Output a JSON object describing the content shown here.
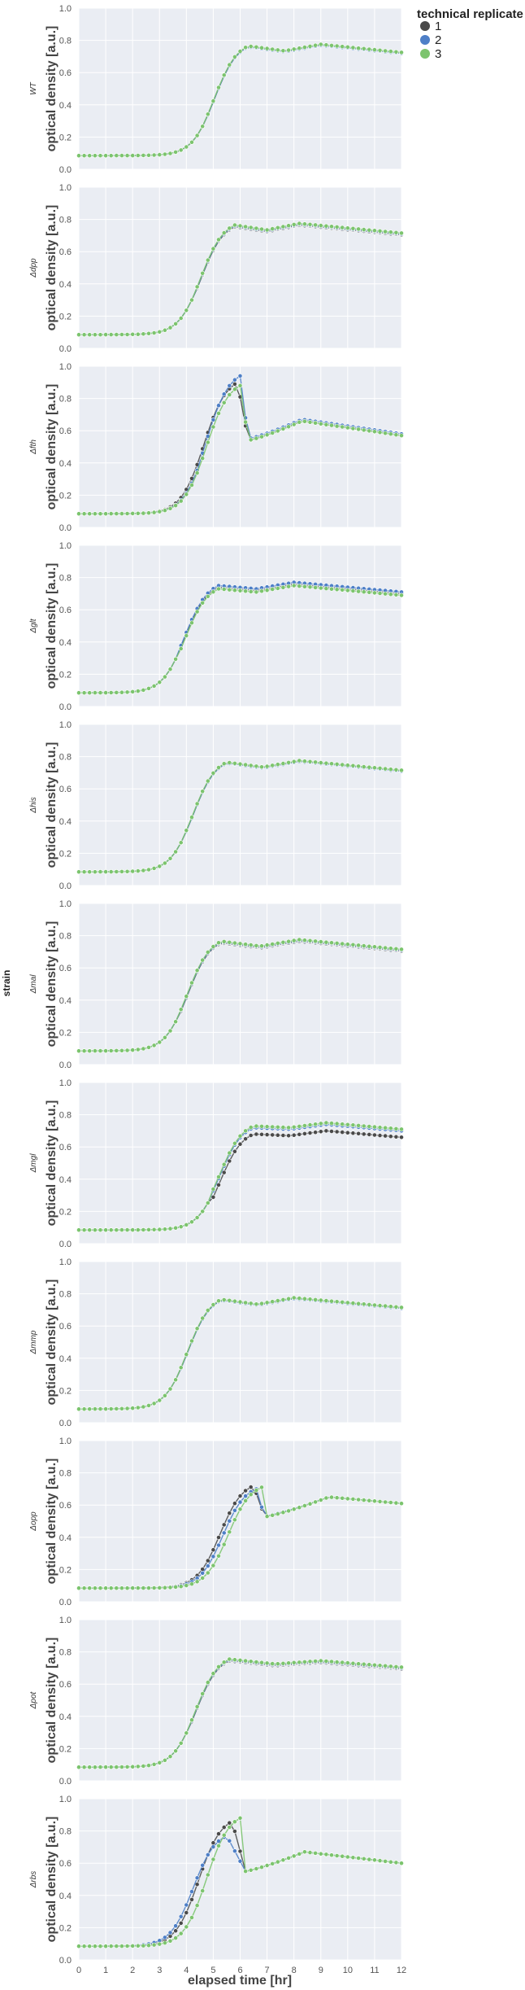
{
  "chart_data": {
    "type": "scatter",
    "x_label": "elapsed time [hr]",
    "y_label": "optical density [a.u.]",
    "facet_title": "strain",
    "xlim": [
      0,
      12
    ],
    "ylim": [
      0,
      1.0
    ],
    "x_ticks": [
      0,
      1,
      2,
      3,
      4,
      5,
      6,
      7,
      8,
      9,
      10,
      11,
      12
    ],
    "y_ticks": [
      0.0,
      0.2,
      0.4,
      0.6,
      0.8,
      1.0
    ],
    "y_tick_labels": [
      "0.0",
      "0.2",
      "0.4",
      "0.6",
      "0.8",
      "1.0"
    ],
    "grid": true,
    "legend": {
      "title": "technical replicate",
      "placement": "top-right outside",
      "entries": [
        {
          "label": "1",
          "color": "#4a4a4a"
        },
        {
          "label": "2",
          "color": "#4e7fc7"
        },
        {
          "label": "3",
          "color": "#7cc46e"
        }
      ]
    },
    "colors": {
      "panel_background": "#eaedf3",
      "grid": "#ffffff",
      "replicate_1": "#4a4a4a",
      "replicate_2": "#4e7fc7",
      "replicate_3": "#7cc46e"
    },
    "panels": [
      {
        "strain": "WT",
        "kind": "standard",
        "plateau_time": 6.3,
        "peak": 0.76,
        "dip": 0.73,
        "second_peak_time": 9.0,
        "second_peak": 0.77,
        "end": 0.72,
        "offsets": [
          0.0,
          0.0,
          0.005
        ]
      },
      {
        "strain": "Δdpp",
        "kind": "standard",
        "plateau_time": 5.8,
        "peak": 0.76,
        "dip": 0.73,
        "second_peak_time": 8.2,
        "second_peak": 0.77,
        "end": 0.71,
        "offsets": [
          -0.005,
          0.0,
          0.005
        ]
      },
      {
        "strain": "Δfth",
        "kind": "crash",
        "peak_times": [
          5.9,
          6.0,
          6.0
        ],
        "peaks": [
          0.9,
          0.93,
          0.88
        ],
        "crash_time": 6.3,
        "crash_level": 0.54,
        "second_peak_time": 8.3,
        "second_peak": 0.66,
        "end": 0.57,
        "offsets": [
          0.0,
          0.01,
          0.0
        ]
      },
      {
        "strain": "Δglt",
        "kind": "standard",
        "plateau_time": 5.2,
        "peak": 0.74,
        "dip": 0.72,
        "second_peak_time": 8.0,
        "second_peak": 0.76,
        "end": 0.7,
        "offsets": [
          0.0,
          0.01,
          -0.01
        ]
      },
      {
        "strain": "Δhis",
        "kind": "standard",
        "plateau_time": 5.5,
        "peak": 0.76,
        "dip": 0.73,
        "second_peak_time": 8.2,
        "second_peak": 0.77,
        "end": 0.71,
        "offsets": [
          0.0,
          0.0,
          0.005
        ]
      },
      {
        "strain": "Δmal",
        "kind": "standard",
        "plateau_time": 5.3,
        "peak": 0.76,
        "dip": 0.73,
        "second_peak_time": 8.2,
        "second_peak": 0.77,
        "end": 0.71,
        "offsets": [
          -0.005,
          0.0,
          0.005
        ]
      },
      {
        "strain": "Δmgl",
        "kind": "standard",
        "plateau_time": 6.5,
        "peak": 0.71,
        "dip": 0.7,
        "second_peak_time": 9.2,
        "second_peak": 0.73,
        "end": 0.69,
        "offsets": [
          -0.03,
          0.01,
          0.02
        ]
      },
      {
        "strain": "Δmmp",
        "kind": "standard",
        "plateau_time": 5.3,
        "peak": 0.76,
        "dip": 0.73,
        "second_peak_time": 8.0,
        "second_peak": 0.77,
        "end": 0.71,
        "offsets": [
          0.0,
          0.0,
          0.005
        ]
      },
      {
        "strain": "Δopp",
        "kind": "crash",
        "peak_times": [
          6.5,
          6.6,
          6.8
        ],
        "peaks": [
          0.72,
          0.7,
          0.71
        ],
        "crash_time": 6.9,
        "crash_level": 0.53,
        "second_peak_time": 9.3,
        "second_peak": 0.65,
        "end": 0.61,
        "offsets": [
          0.0,
          0.0,
          0.0
        ]
      },
      {
        "strain": "Δpot",
        "kind": "standard",
        "plateau_time": 5.6,
        "peak": 0.75,
        "dip": 0.72,
        "second_peak_time": 9.0,
        "second_peak": 0.74,
        "end": 0.7,
        "offsets": [
          -0.005,
          0.0,
          0.005
        ]
      },
      {
        "strain": "Δrbs",
        "kind": "crash",
        "peak_times": [
          5.7,
          5.5,
          6.0
        ],
        "peaks": [
          0.86,
          0.77,
          0.88
        ],
        "crash_time": 6.2,
        "crash_level": 0.55,
        "second_peak_time": 8.4,
        "second_peak": 0.67,
        "end": 0.6,
        "offsets": [
          0.0,
          0.0,
          0.0
        ]
      }
    ]
  }
}
